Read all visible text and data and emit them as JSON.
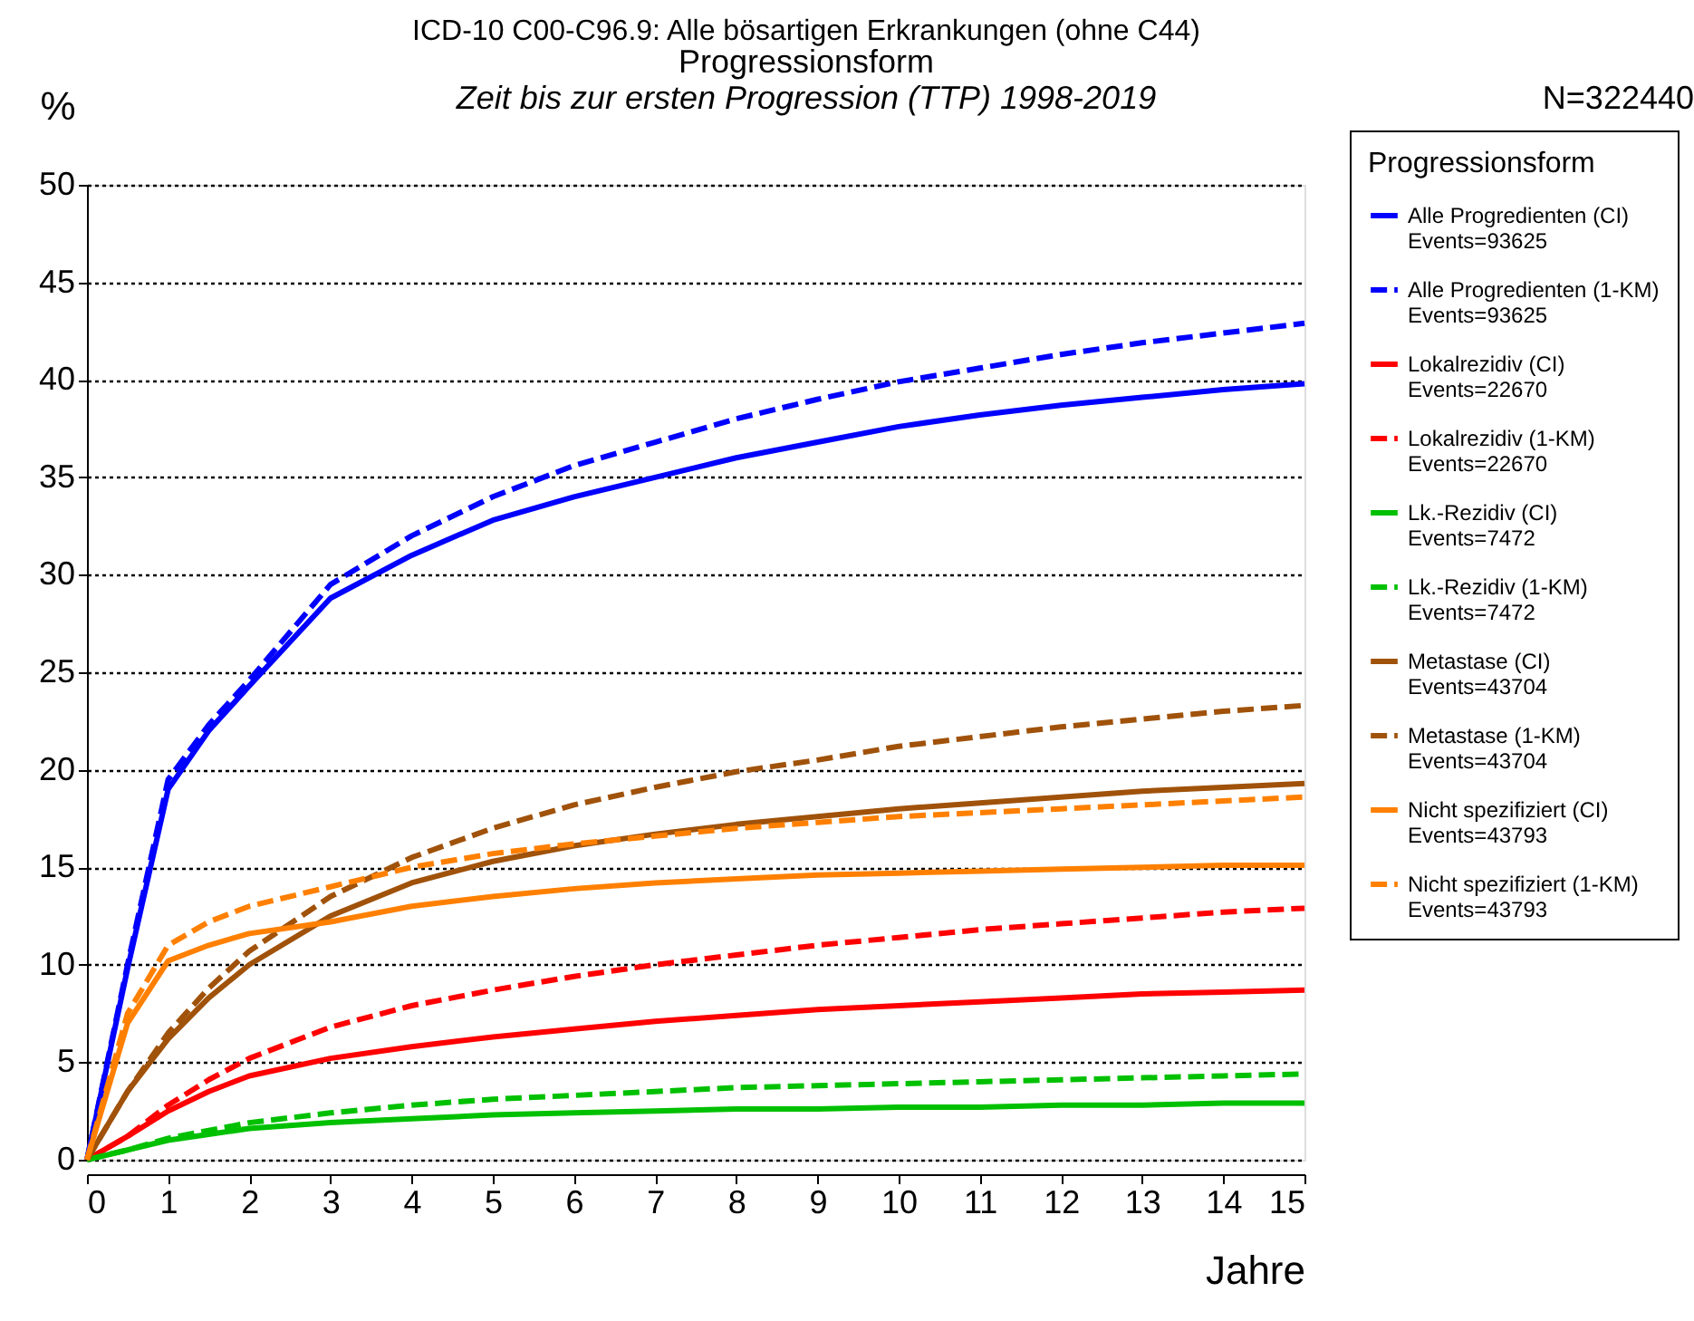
{
  "chart_data": {
    "type": "line",
    "title": "ICD-10 C00-C96.9: Alle bösartigen Erkrankungen (ohne C44)",
    "subtitle": "Progressionsform",
    "annotations": [
      "Zeit bis zur ersten Progression (TTP) 1998-2019",
      "N=322440"
    ],
    "xlabel": "Jahre",
    "ylabel": "%",
    "legend_title": "Progressionsform",
    "x": [
      0,
      0.5,
      1,
      1.5,
      2,
      3,
      4,
      5,
      6,
      7,
      8,
      9,
      10,
      11,
      12,
      13,
      14,
      15
    ],
    "xlim": [
      0,
      15
    ],
    "xticks": [
      0,
      1,
      2,
      3,
      4,
      5,
      6,
      7,
      8,
      9,
      10,
      11,
      12,
      13,
      14,
      15
    ],
    "ylim": [
      0,
      50
    ],
    "yticks": [
      0,
      5,
      10,
      15,
      20,
      25,
      30,
      35,
      40,
      45,
      50
    ],
    "grid": "y",
    "legend": "right",
    "marker": "none",
    "series": [
      {
        "name": "Alle Progredienten (CI)\nEvents=93625",
        "color": "#0000ff",
        "line_style": "solid",
        "values": [
          0,
          9.8,
          19,
          22,
          24.3,
          28.8,
          31,
          32.8,
          34,
          35,
          36,
          36.8,
          37.6,
          38.2,
          38.7,
          39.1,
          39.5,
          39.8
        ]
      },
      {
        "name": "Alle Progredienten (1-KM)\nEvents=93625",
        "color": "#0000ff",
        "line_style": "dashed",
        "values": [
          0,
          10,
          19.5,
          22.3,
          24.6,
          29.5,
          32,
          34,
          35.6,
          36.8,
          38,
          39,
          39.9,
          40.6,
          41.3,
          41.9,
          42.4,
          42.9
        ]
      },
      {
        "name": "Lokalrezidiv (CI)\nEvents=22670",
        "color": "#ff0000",
        "line_style": "solid",
        "values": [
          0,
          1.2,
          2.5,
          3.5,
          4.3,
          5.2,
          5.8,
          6.3,
          6.7,
          7.1,
          7.4,
          7.7,
          7.9,
          8.1,
          8.3,
          8.5,
          8.6,
          8.7
        ]
      },
      {
        "name": "Lokalrezidiv (1-KM)\nEvents=22670",
        "color": "#ff0000",
        "line_style": "dashed",
        "values": [
          0,
          1.2,
          2.8,
          4.1,
          5.2,
          6.8,
          7.9,
          8.7,
          9.4,
          10,
          10.5,
          11,
          11.4,
          11.8,
          12.1,
          12.4,
          12.7,
          12.9
        ]
      },
      {
        "name": "Lk.-Rezidiv (CI)\nEvents=7472",
        "color": "#00c000",
        "line_style": "solid",
        "values": [
          0,
          0.5,
          1,
          1.3,
          1.6,
          1.9,
          2.1,
          2.3,
          2.4,
          2.5,
          2.6,
          2.6,
          2.7,
          2.7,
          2.8,
          2.8,
          2.9,
          2.9
        ]
      },
      {
        "name": "Lk.-Rezidiv (1-KM)\nEvents=7472",
        "color": "#00c000",
        "line_style": "dashed",
        "values": [
          0,
          0.5,
          1.1,
          1.5,
          1.9,
          2.4,
          2.8,
          3.1,
          3.3,
          3.5,
          3.7,
          3.8,
          3.9,
          4,
          4.1,
          4.2,
          4.3,
          4.4
        ]
      },
      {
        "name": "Metastase (CI)\nEvents=43704",
        "color": "#a0520a",
        "line_style": "solid",
        "values": [
          0,
          3.5,
          6.2,
          8.3,
          10,
          12.5,
          14.2,
          15.3,
          16.1,
          16.7,
          17.2,
          17.6,
          18,
          18.3,
          18.6,
          18.9,
          19.1,
          19.3
        ]
      },
      {
        "name": "Metastase (1-KM)\nEvents=43704",
        "color": "#a0520a",
        "line_style": "dashed",
        "values": [
          0,
          3.5,
          6.5,
          8.8,
          10.7,
          13.5,
          15.5,
          17,
          18.2,
          19.1,
          19.9,
          20.5,
          21.2,
          21.7,
          22.2,
          22.6,
          23,
          23.3
        ]
      },
      {
        "name": "Nicht spezifiziert (CI)\nEvents=43793",
        "color": "#ff8000",
        "line_style": "solid",
        "values": [
          0,
          7,
          10.2,
          11,
          11.6,
          12.2,
          13,
          13.5,
          13.9,
          14.2,
          14.4,
          14.6,
          14.7,
          14.8,
          14.9,
          15,
          15.1,
          15.1
        ]
      },
      {
        "name": "Nicht spezifiziert (1-KM)\nEvents=43793",
        "color": "#ff8000",
        "line_style": "dashed",
        "values": [
          0,
          7.5,
          11,
          12.2,
          13,
          14,
          15,
          15.7,
          16.2,
          16.6,
          17,
          17.3,
          17.6,
          17.8,
          18,
          18.2,
          18.4,
          18.6
        ]
      }
    ]
  }
}
